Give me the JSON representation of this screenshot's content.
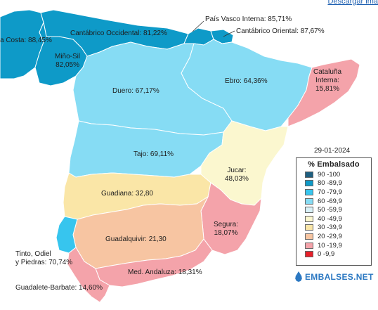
{
  "link": {
    "text": "Descargar imá"
  },
  "date": "29-01-2024",
  "legend": {
    "title": "% Embalsado",
    "items": [
      {
        "label": "90 -100",
        "color": "#1f5f80"
      },
      {
        "label": "80 -89,9",
        "color": "#0e9ac8"
      },
      {
        "label": "70 -79,9",
        "color": "#37c5ee"
      },
      {
        "label": "60 -69,9",
        "color": "#86dcf4"
      },
      {
        "label": "50 -59,9",
        "color": "#d9f1f7"
      },
      {
        "label": "40 -49,9",
        "color": "#fbf7cf"
      },
      {
        "label": "30 -39,9",
        "color": "#fae6a7"
      },
      {
        "label": "20 -29,9",
        "color": "#f7c5a2"
      },
      {
        "label": "10 -19,9",
        "color": "#f4a3aa"
      },
      {
        "label": "0 -9,9",
        "color": "#e8202a"
      }
    ]
  },
  "brand": "EMBALSES.NET",
  "basins": [
    {
      "name": "Galicia Costa",
      "label": "a Costa: 88,45%",
      "value": 88.45
    },
    {
      "name": "Cantábrico Occidental",
      "label": "Cantábrico Occidental: 81,22%",
      "value": 81.22
    },
    {
      "name": "País Vasco Interna",
      "label": "País Vasco Interna: 85,71%",
      "value": 85.71
    },
    {
      "name": "Cantábrico Oriental",
      "label": "Cantábrico Oriental: 87,67%",
      "value": 87.67
    },
    {
      "name": "Miño-Sil",
      "label": "Miño-Sil\n82,05%",
      "value": 82.05
    },
    {
      "name": "Duero",
      "label": "Duero: 67,17%",
      "value": 67.17
    },
    {
      "name": "Ebro",
      "label": "Ebro: 64,36%",
      "value": 64.36
    },
    {
      "name": "Cataluña Interna",
      "label": "Cataluña\nInterna:\n15,81%",
      "value": 15.81
    },
    {
      "name": "Tajo",
      "label": "Tajo: 69,11%",
      "value": 69.11
    },
    {
      "name": "Jucar",
      "label": "Jucar:\n48,03%",
      "value": 48.03
    },
    {
      "name": "Guadiana",
      "label": "Guadiana: 32,80",
      "value": 32.8
    },
    {
      "name": "Segura",
      "label": "Segura:\n18,07%",
      "value": 18.07
    },
    {
      "name": "Guadalquivir",
      "label": "Guadalquivir: 21,30",
      "value": 21.3
    },
    {
      "name": "Tinto, Odiel y Piedras",
      "label": "Tinto, Odiel\ny Piedras: 70,74%",
      "value": 70.74
    },
    {
      "name": "Med. Andaluza",
      "label": "Med. Andaluza: 18,31%",
      "value": 18.31
    },
    {
      "name": "Guadalete-Barbate",
      "label": "Guadalete-Barbate: 14,60%",
      "value": 14.6
    }
  ]
}
